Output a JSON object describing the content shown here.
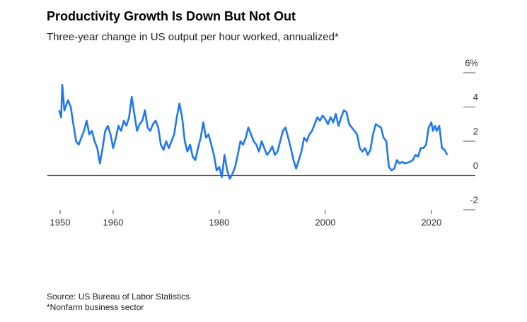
{
  "chart_data": {
    "type": "line",
    "title": "Productivity Growth Is Down But Not Out",
    "subtitle": "Three-year change in US output per hour worked, annualized*",
    "source": "Source: US Bureau of Labor Statistics",
    "footnote": "*Nonfarm business sector",
    "xlim": [
      1947.6,
      2028.3
    ],
    "xticks": [
      1950,
      1960,
      1980,
      2000,
      2020
    ],
    "ylim": [
      -2,
      6
    ],
    "yticks": [
      {
        "value": 6,
        "label": "6%"
      },
      4,
      2,
      0,
      -2
    ],
    "series": [
      {
        "color": "#1f78f0",
        "x": [
          1949.8,
          1950.2,
          1950.4,
          1950.8,
          1951.5,
          1952,
          1952.5,
          1953,
          1953.5,
          1954,
          1954.5,
          1955,
          1955.5,
          1956,
          1956.5,
          1957,
          1957.5,
          1958,
          1958.5,
          1959,
          1959.5,
          1960,
          1960.5,
          1961,
          1961.5,
          1962,
          1962.5,
          1963,
          1963.5,
          1964,
          1964.5,
          1965,
          1965.5,
          1966,
          1966.5,
          1967,
          1967.5,
          1968,
          1968.5,
          1969,
          1969.5,
          1970,
          1970.5,
          1971,
          1971.5,
          1972,
          1972.5,
          1973,
          1973.5,
          1974,
          1974.5,
          1975,
          1975.5,
          1976,
          1976.5,
          1977,
          1977.5,
          1978,
          1978.5,
          1979,
          1979.5,
          1980,
          1980.5,
          1981,
          1981.5,
          1982,
          1982.5,
          1983,
          1983.5,
          1984,
          1984.5,
          1985,
          1985.5,
          1986,
          1986.5,
          1987,
          1987.5,
          1988,
          1988.5,
          1989,
          1989.5,
          1990,
          1990.5,
          1991,
          1991.5,
          1992,
          1992.5,
          1993,
          1993.5,
          1994,
          1994.5,
          1995,
          1995.5,
          1996,
          1996.5,
          1997,
          1997.5,
          1998,
          1998.5,
          1999,
          1999.5,
          2000,
          2000.5,
          2001,
          2001.5,
          2002,
          2002.5,
          2003,
          2003.5,
          2004,
          2004.5,
          2005,
          2005.5,
          2006,
          2006.5,
          2007,
          2007.5,
          2008,
          2008.5,
          2009,
          2009.5,
          2010,
          2010.5,
          2011,
          2011.5,
          2012,
          2012.5,
          2013,
          2013.5,
          2014,
          2014.5,
          2015,
          2016,
          2016.5,
          2017,
          2017.5,
          2018,
          2018.5,
          2019,
          2019.5,
          2020,
          2020.3,
          2020.7,
          2021,
          2021.5,
          2022,
          2022.5,
          2023
        ],
        "values": [
          3.8,
          3.4,
          5.3,
          3.8,
          4.4,
          4.0,
          3.0,
          2.0,
          1.8,
          2.2,
          2.6,
          3.2,
          2.4,
          2.6,
          2.0,
          1.6,
          0.7,
          1.6,
          2.6,
          2.9,
          2.4,
          1.6,
          2.2,
          2.9,
          2.6,
          3.2,
          2.9,
          3.4,
          4.6,
          3.6,
          2.6,
          3.0,
          3.2,
          3.8,
          2.8,
          2.6,
          3.0,
          3.2,
          2.8,
          1.8,
          1.5,
          2.0,
          1.6,
          2.0,
          2.4,
          3.4,
          4.2,
          3.4,
          2.0,
          1.4,
          1.8,
          1.1,
          0.9,
          1.6,
          2.2,
          3.1,
          2.2,
          2.4,
          1.8,
          1.2,
          0.3,
          0.5,
          -0.1,
          1.2,
          0.3,
          -0.2,
          0.1,
          0.5,
          1.2,
          2.0,
          1.8,
          2.2,
          2.8,
          2.4,
          2.0,
          1.8,
          1.4,
          2.0,
          1.6,
          1.2,
          1.4,
          1.7,
          1.2,
          1.4,
          2.0,
          2.6,
          2.8,
          2.2,
          1.6,
          0.9,
          0.4,
          0.9,
          1.4,
          2.2,
          2.0,
          2.4,
          2.6,
          3.0,
          3.4,
          3.2,
          3.5,
          3.3,
          3.0,
          3.4,
          3.1,
          3.6,
          2.9,
          3.4,
          3.8,
          3.7,
          3.0,
          2.8,
          2.6,
          2.4,
          1.6,
          1.4,
          1.6,
          1.2,
          1.5,
          2.4,
          3.0,
          2.9,
          2.8,
          2.2,
          2.0,
          0.5,
          0.3,
          0.4,
          0.9,
          0.7,
          0.8,
          0.7,
          0.8,
          0.9,
          1.2,
          1.1,
          1.6,
          1.6,
          1.8,
          2.8,
          3.1,
          2.6,
          2.9,
          2.6,
          2.9,
          1.6,
          1.5,
          1.2
        ]
      }
    ]
  }
}
